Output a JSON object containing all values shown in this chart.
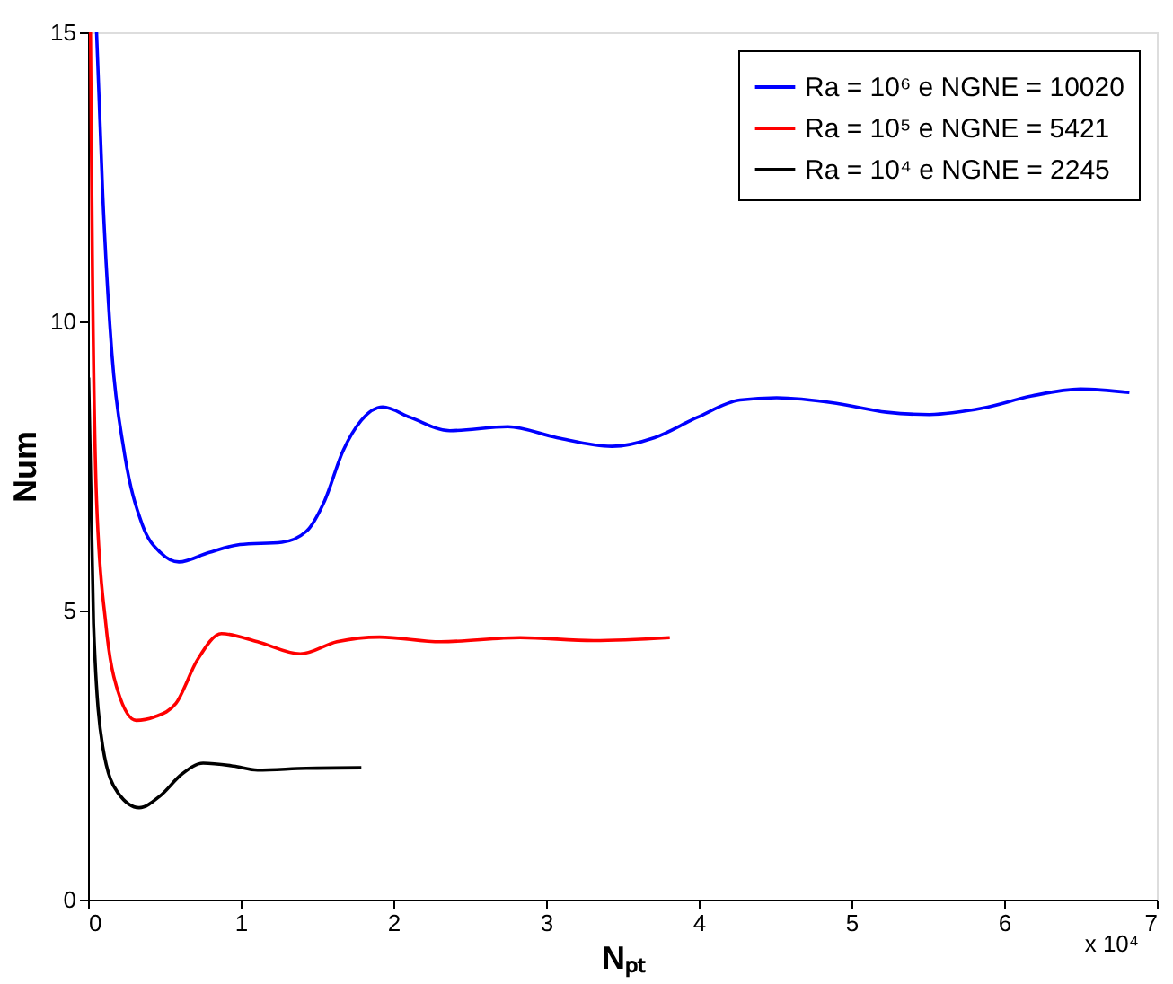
{
  "chart_data": {
    "type": "line",
    "xlabel": "Nₚₜ",
    "ylabel": "Num",
    "xlim": [
      0,
      7
    ],
    "ylim": [
      0,
      15
    ],
    "xticks": [
      0,
      1,
      2,
      3,
      4,
      5,
      6,
      7
    ],
    "yticks": [
      0,
      5,
      10,
      15
    ],
    "grid": false,
    "legend": "top right",
    "line_style": "solid",
    "marker": "none",
    "annotations": [
      "x 10⁴"
    ],
    "series": [
      {
        "name": "Ra = 10⁶ e NGNE = 10020",
        "color": "#0000ff",
        "x": [
          0.056,
          0.096,
          0.156,
          0.236,
          0.356,
          0.475,
          0.595,
          0.79,
          0.994,
          1.27,
          1.43,
          1.55,
          1.67,
          1.79,
          1.93,
          2.11,
          2.37,
          2.75,
          3.07,
          3.43,
          3.71,
          3.99,
          4.27,
          4.51,
          4.91,
          5.23,
          5.51,
          5.86,
          6.18,
          6.5,
          6.82
        ],
        "values": [
          15,
          12.22,
          9.46,
          7.76,
          6.48,
          6.0,
          5.84,
          6.0,
          6.14,
          6.18,
          6.37,
          6.9,
          7.76,
          8.29,
          8.52,
          8.34,
          8.11,
          8.18,
          7.99,
          7.84,
          7.99,
          8.34,
          8.64,
          8.68,
          8.58,
          8.43,
          8.39,
          8.5,
          8.71,
          8.83,
          8.77
        ]
      },
      {
        "name": "Ra = 10⁵ e NGNE = 5421",
        "color": "#ff0000",
        "x": [
          0.016,
          0.028,
          0.056,
          0.116,
          0.195,
          0.315,
          0.435,
          0.575,
          0.715,
          0.874,
          1.11,
          1.39,
          1.63,
          1.91,
          2.31,
          2.83,
          3.31,
          3.81
        ],
        "values": [
          15,
          11.16,
          6.9,
          4.78,
          3.61,
          3.1,
          3.16,
          3.39,
          4.14,
          4.6,
          4.46,
          4.25,
          4.46,
          4.54,
          4.46,
          4.53,
          4.48,
          4.53
        ]
      },
      {
        "name": "Ra = 10⁴ e NGNE = 2245",
        "color": "#000000",
        "x": [
          0.004,
          0.036,
          0.096,
          0.195,
          0.335,
          0.475,
          0.614,
          0.754,
          0.954,
          1.11,
          1.43,
          1.79
        ],
        "values": [
          9.03,
          4.78,
          2.65,
          1.85,
          1.59,
          1.8,
          2.17,
          2.36,
          2.31,
          2.24,
          2.27,
          2.28
        ]
      }
    ]
  }
}
